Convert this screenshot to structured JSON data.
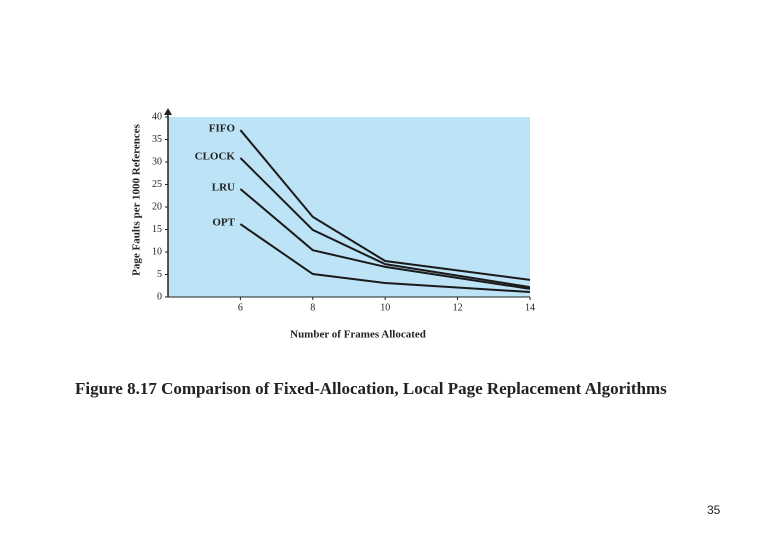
{
  "chart_data": {
    "type": "line",
    "caption": "Figure 8.17  Comparison of Fixed-Allocation, Local Page Replacement Algorithms",
    "x_label": "Number of Frames Allocated",
    "y_label": "Page Faults per 1000 References",
    "x": [
      6,
      8,
      10,
      14
    ],
    "series": [
      {
        "name": "FIFO",
        "color": "#1a1a1a",
        "values": [
          37.1,
          17.8,
          8,
          3.8
        ]
      },
      {
        "name": "CLOCK",
        "color": "#1a1a1a",
        "values": [
          30.9,
          14.9,
          7.3,
          2.2
        ]
      },
      {
        "name": "LRU",
        "color": "#1a1a1a",
        "values": [
          24,
          10.4,
          6.7,
          1.8
        ]
      },
      {
        "name": "OPT",
        "color": "#1a1a1a",
        "values": [
          16.2,
          5.1,
          3.1,
          1.1
        ]
      }
    ],
    "xlim": [
      4,
      14
    ],
    "xticks": [
      6,
      8,
      10,
      12,
      14
    ],
    "ylim": [
      0,
      40
    ],
    "yticks": [
      0,
      5,
      10,
      15,
      20,
      25,
      30,
      35,
      40
    ],
    "background": "#bde3f7"
  },
  "page_number": "35"
}
